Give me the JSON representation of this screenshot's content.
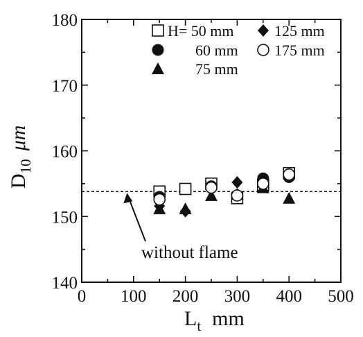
{
  "chart_data": {
    "type": "scatter",
    "xlabel": "L",
    "xlabel_sub": "t",
    "xlabel_unit": "mm",
    "ylabel": "D",
    "ylabel_sub": "10",
    "ylabel_unit": "μm",
    "xlim": [
      0,
      500
    ],
    "ylim": [
      140,
      180
    ],
    "xticks": [
      0,
      100,
      200,
      300,
      400,
      500
    ],
    "yticks": [
      140,
      150,
      160,
      170,
      180
    ],
    "grid": false,
    "legend_position": "top-right",
    "series": [
      {
        "name": "H= 50 mm",
        "marker": "open-square",
        "points": [
          [
            150,
            153.8
          ],
          [
            200,
            154.2
          ],
          [
            250,
            155.0
          ],
          [
            300,
            152.8
          ],
          [
            350,
            154.8
          ],
          [
            400,
            156.6
          ]
        ]
      },
      {
        "name": "60 mm",
        "marker": "filled-circle",
        "points": [
          [
            150,
            153.0
          ],
          [
            250,
            154.6
          ],
          [
            300,
            153.2
          ],
          [
            350,
            155.8
          ],
          [
            400,
            156.0
          ]
        ]
      },
      {
        "name": "75 mm",
        "marker": "filled-triangle",
        "points": [
          [
            150,
            151.2
          ],
          [
            200,
            151.2
          ],
          [
            250,
            153.2
          ],
          [
            300,
            153.4
          ],
          [
            350,
            154.4
          ],
          [
            400,
            152.8
          ]
        ]
      },
      {
        "name": "125 mm",
        "marker": "filled-diamond",
        "points": [
          [
            150,
            151.6
          ],
          [
            200,
            150.8
          ],
          [
            250,
            154.4
          ],
          [
            300,
            155.2
          ],
          [
            350,
            155.0
          ],
          [
            400,
            156.0
          ]
        ]
      },
      {
        "name": "175 mm",
        "marker": "open-circle",
        "points": [
          [
            150,
            152.6
          ],
          [
            250,
            154.4
          ],
          [
            300,
            153.2
          ],
          [
            350,
            155.0
          ],
          [
            400,
            156.4
          ]
        ]
      }
    ],
    "reference_line": {
      "value": 153.8,
      "style": "dashed",
      "label": "without  flame"
    },
    "annotation_arrow_to_x": 90
  }
}
